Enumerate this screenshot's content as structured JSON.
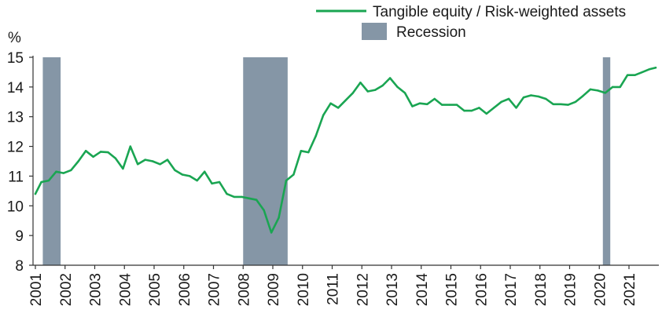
{
  "chart_data": {
    "type": "line",
    "title": "",
    "xlabel": "",
    "ylabel": "%",
    "ylim": [
      8,
      15
    ],
    "yticks": [
      8,
      9,
      10,
      11,
      12,
      13,
      14,
      15
    ],
    "xlim": [
      2001,
      2021.9
    ],
    "xticks": [
      2001,
      2002,
      2003,
      2004,
      2005,
      2006,
      2007,
      2008,
      2009,
      2010,
      2011,
      2012,
      2013,
      2014,
      2015,
      2016,
      2017,
      2018,
      2019,
      2020,
      2021
    ],
    "grid": false,
    "legend_position": "top-right",
    "colors": {
      "line": "#1aa552",
      "recession": "#8596a6",
      "axis": "#333333"
    },
    "series": [
      {
        "name": "Tangible equity / Risk-weighted assets",
        "x": [
          2001.0,
          2001.2,
          2001.45,
          2001.7,
          2001.95,
          2002.2,
          2002.45,
          2002.7,
          2002.95,
          2003.2,
          2003.45,
          2003.7,
          2003.95,
          2004.2,
          2004.45,
          2004.7,
          2004.95,
          2005.2,
          2005.45,
          2005.7,
          2005.95,
          2006.2,
          2006.45,
          2006.7,
          2006.95,
          2007.2,
          2007.45,
          2007.7,
          2007.95,
          2008.2,
          2008.45,
          2008.7,
          2008.95,
          2009.2,
          2009.45,
          2009.7,
          2009.95,
          2010.2,
          2010.45,
          2010.7,
          2010.95,
          2011.2,
          2011.45,
          2011.7,
          2011.95,
          2012.2,
          2012.45,
          2012.7,
          2012.95,
          2013.2,
          2013.45,
          2013.7,
          2013.95,
          2014.2,
          2014.45,
          2014.7,
          2014.95,
          2015.2,
          2015.45,
          2015.7,
          2015.95,
          2016.2,
          2016.45,
          2016.7,
          2016.95,
          2017.2,
          2017.45,
          2017.7,
          2017.95,
          2018.2,
          2018.45,
          2018.7,
          2018.95,
          2019.2,
          2019.45,
          2019.7,
          2019.95,
          2020.2,
          2020.45,
          2020.7,
          2020.95,
          2021.2,
          2021.45,
          2021.7,
          2021.9
        ],
        "values": [
          10.4,
          10.8,
          10.85,
          11.15,
          11.1,
          11.2,
          11.5,
          11.85,
          11.65,
          11.82,
          11.8,
          11.6,
          11.25,
          12.0,
          11.4,
          11.55,
          11.5,
          11.4,
          11.55,
          11.2,
          11.05,
          11.0,
          10.85,
          11.15,
          10.75,
          10.8,
          10.4,
          10.3,
          10.3,
          10.25,
          10.2,
          9.85,
          9.1,
          9.6,
          10.85,
          11.05,
          11.85,
          11.8,
          12.35,
          13.05,
          13.45,
          13.3,
          13.55,
          13.8,
          14.15,
          13.85,
          13.9,
          14.05,
          14.3,
          14.0,
          13.8,
          13.35,
          13.45,
          13.42,
          13.6,
          13.4,
          13.4,
          13.4,
          13.2,
          13.2,
          13.3,
          13.1,
          13.3,
          13.5,
          13.6,
          13.3,
          13.65,
          13.72,
          13.68,
          13.6,
          13.42,
          13.42,
          13.4,
          13.5,
          13.7,
          13.92,
          13.88,
          13.8,
          14.0,
          14.0,
          14.4,
          14.4,
          14.5,
          14.6,
          14.65
        ]
      }
    ],
    "recessions": {
      "name": "Recession",
      "periods": [
        [
          2001.25,
          2001.85
        ],
        [
          2008.0,
          2009.5
        ],
        [
          2020.12,
          2020.37
        ]
      ]
    }
  }
}
